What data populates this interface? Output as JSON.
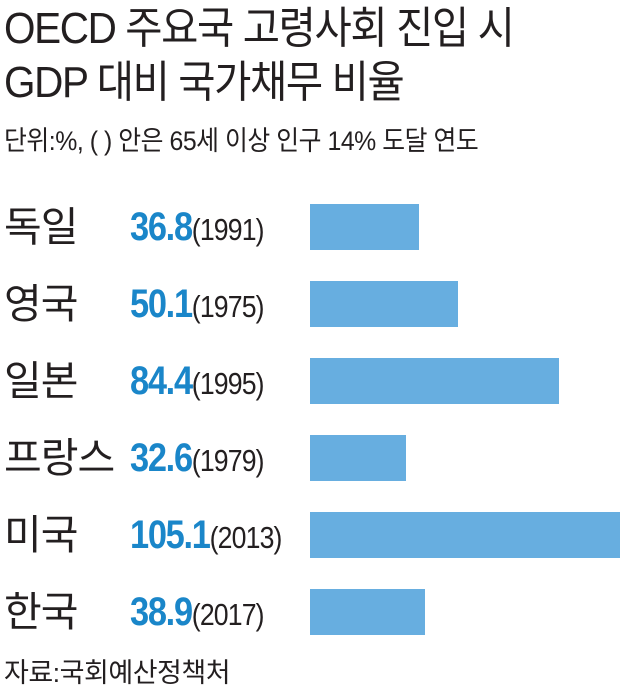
{
  "title": {
    "line1": "OECD 주요국 고령사회 진입 시",
    "line2": "GDP 대비 국가채무 비율"
  },
  "unit_note": "단위:%, ( ) 안은 65세 이상 인구 14% 도달 연도",
  "source": "자료:국회예산정책처",
  "colors": {
    "bar": "#67aee0",
    "value_text": "#1a86c9",
    "text": "#231f20"
  },
  "chart_data": {
    "type": "bar",
    "orientation": "horizontal",
    "categories": [
      "독일",
      "영국",
      "일본",
      "프랑스",
      "미국",
      "한국"
    ],
    "values": [
      36.8,
      50.1,
      84.4,
      32.6,
      105.1,
      38.9
    ],
    "value_labels": [
      "36.8",
      "50.1",
      "84.4",
      "32.6",
      "105.1",
      "38.9"
    ],
    "years": [
      "(1991)",
      "(1975)",
      "(1995)",
      "(1979)",
      "(2013)",
      "(2017)"
    ],
    "xlim": [
      0,
      105.1
    ],
    "grid": false,
    "legend": "none"
  }
}
